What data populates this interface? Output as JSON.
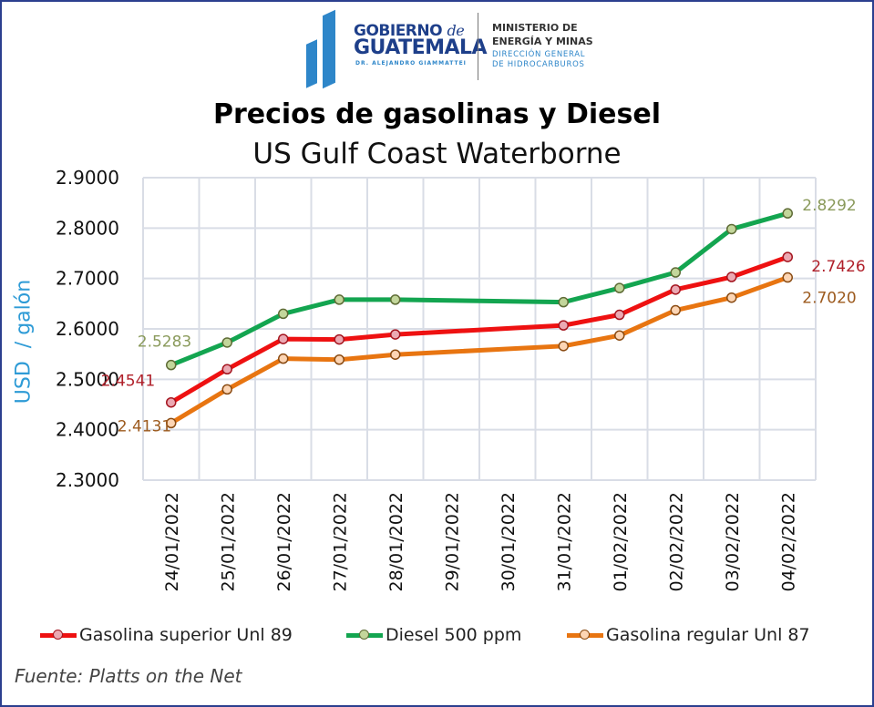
{
  "header": {
    "gov_line1": "GOBIERNO",
    "gov_de": "de",
    "gov_line2": "GUATEMALA",
    "gov_line3": "DR. ALEJANDRO GIAMMATTEI",
    "ministry_line1": "MINISTERIO DE",
    "ministry_line2": "ENERGÍA Y MINAS",
    "ministry_line3": "DIRECCIÓN GENERAL",
    "ministry_line4": "DE HIDROCARBUROS"
  },
  "source": "Fuente: Platts on the Net",
  "chart_data": {
    "type": "line",
    "title": "Precios de gasolinas y Diesel",
    "subtitle": "US Gulf Coast Waterborne",
    "xlabel": "",
    "ylabel": "USD  / galón",
    "ylim": [
      2.3,
      2.9
    ],
    "yticks": [
      "2.9000",
      "2.8000",
      "2.7000",
      "2.6000",
      "2.5000",
      "2.4000",
      "2.3000"
    ],
    "ytick_values": [
      2.9,
      2.8,
      2.7,
      2.6,
      2.5,
      2.4,
      2.3
    ],
    "grid": true,
    "legend_position": "bottom",
    "categories": [
      "24/01/2022",
      "25/01/2022",
      "26/01/2022",
      "27/01/2022",
      "28/01/2022",
      "29/01/2022",
      "30/01/2022",
      "31/01/2022",
      "01/02/2022",
      "02/02/2022",
      "03/02/2022",
      "04/02/2022"
    ],
    "series": [
      {
        "name": "Gasolina superior Unl 89",
        "color": "#ee1111",
        "marker_fill": "#eba9b3",
        "marker_stroke": "#a4141e",
        "label_color": "#b0202a",
        "values": [
          2.4541,
          2.52,
          2.58,
          2.579,
          2.589,
          null,
          null,
          2.607,
          2.628,
          2.678,
          2.703,
          2.7426
        ],
        "data_labels": {
          "first": "2.4541",
          "last": "2.7426"
        }
      },
      {
        "name": "Diesel 500 ppm",
        "color": "#13a550",
        "marker_fill": "#c3d69b",
        "marker_stroke": "#5e6b35",
        "label_color": "#8a9a5b",
        "values": [
          2.5283,
          2.573,
          2.63,
          2.658,
          2.658,
          null,
          null,
          2.653,
          2.681,
          2.712,
          2.798,
          2.8292
        ],
        "data_labels": {
          "first": "2.5283",
          "last": "2.8292"
        }
      },
      {
        "name": "Gasolina regular Unl 87",
        "color": "#e87511",
        "marker_fill": "#fcd5b4",
        "marker_stroke": "#8a4b12",
        "label_color": "#9c5a1e",
        "values": [
          2.4131,
          2.48,
          2.541,
          2.539,
          2.549,
          null,
          null,
          2.566,
          2.587,
          2.637,
          2.662,
          2.702
        ],
        "data_labels": {
          "first": "2.4131",
          "last": "2.7020"
        }
      }
    ]
  }
}
